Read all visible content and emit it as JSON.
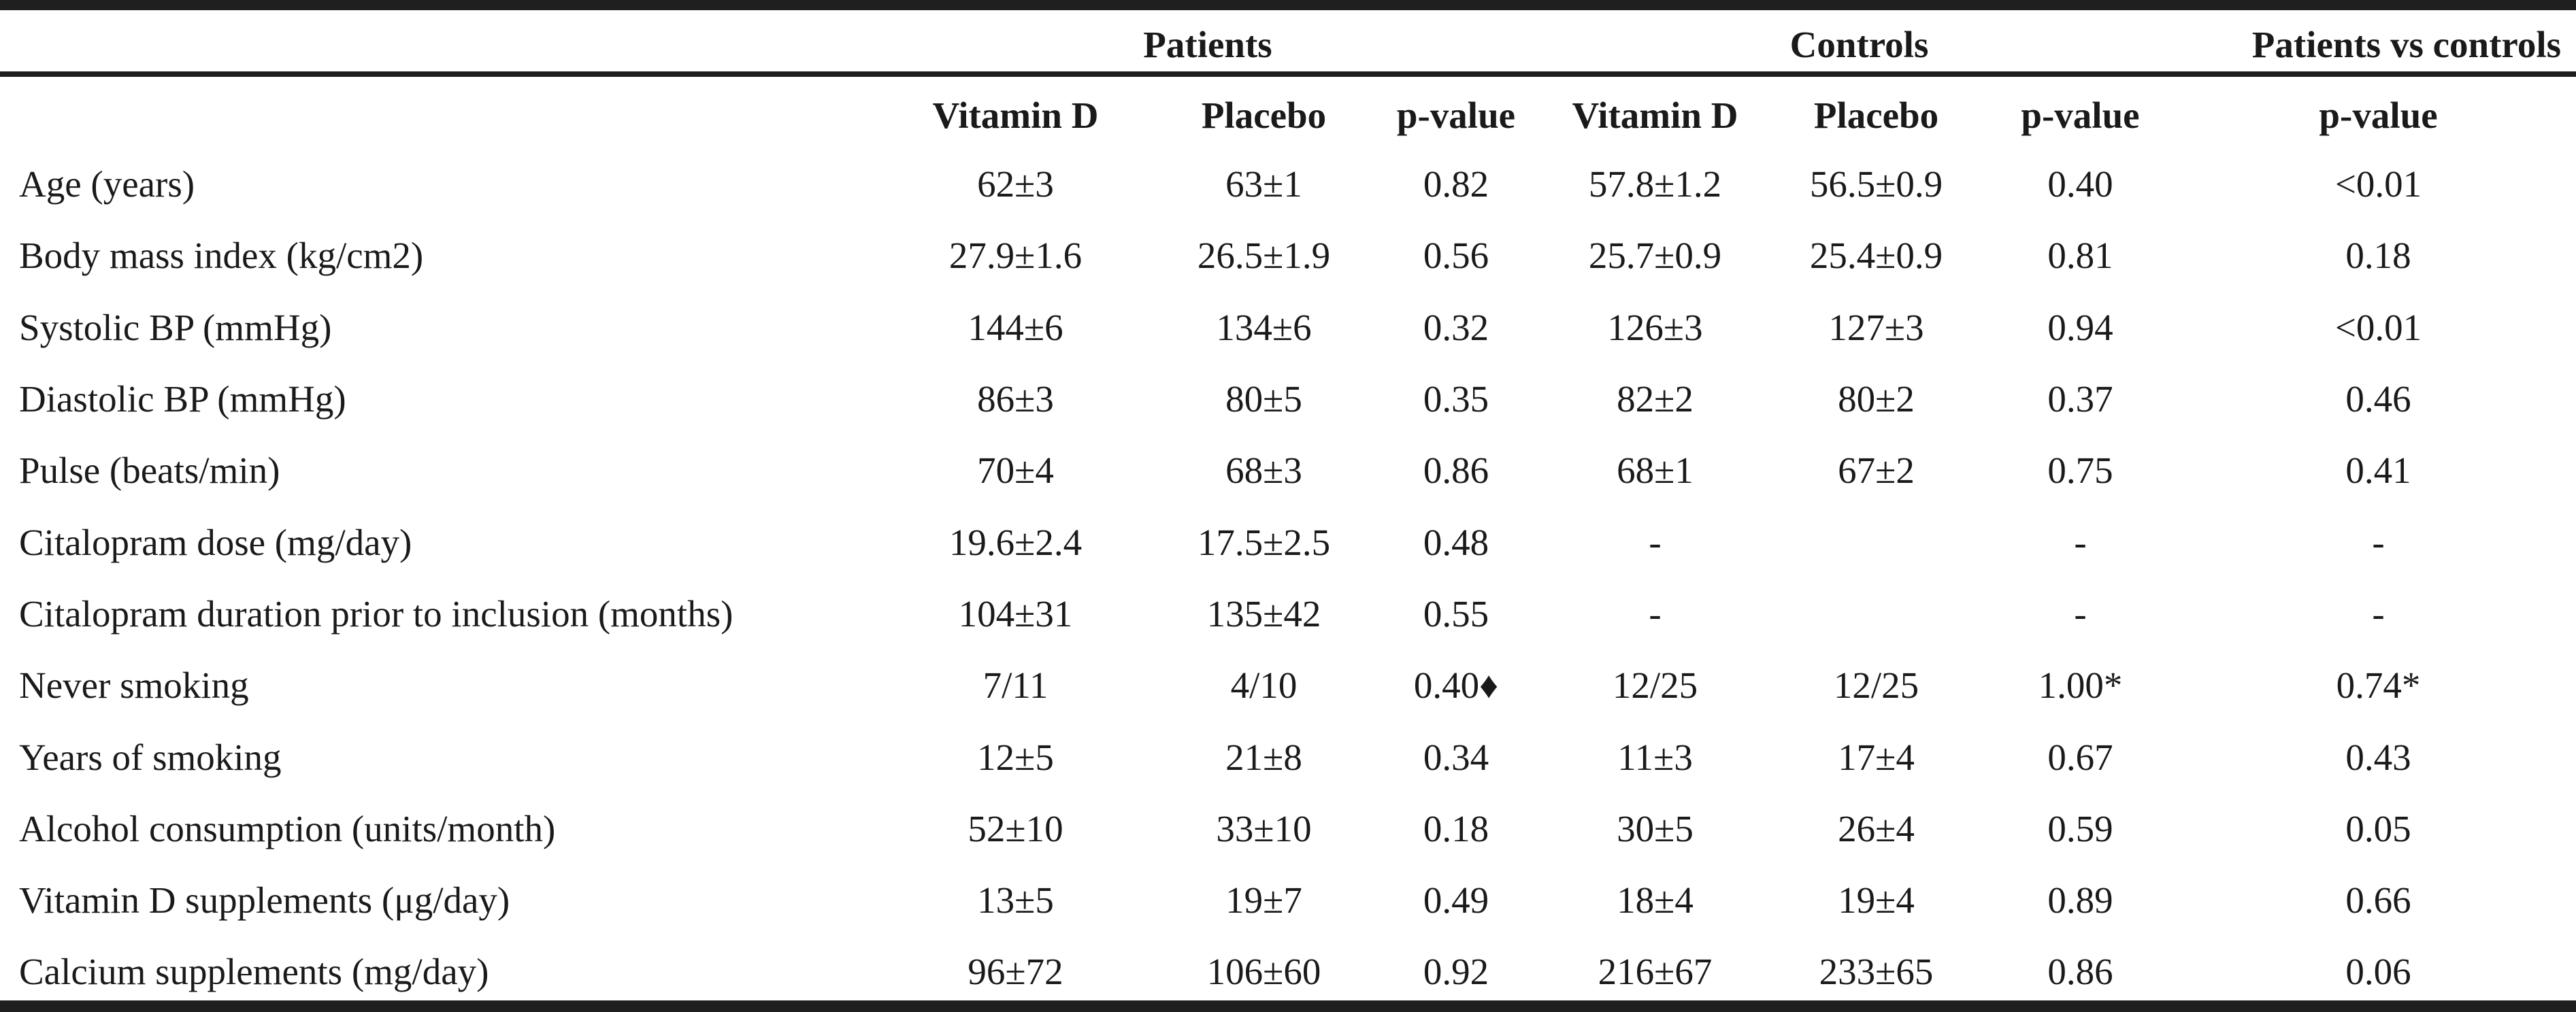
{
  "groups": {
    "patients": "Patients",
    "controls": "Controls",
    "comparison": "Patients vs controls"
  },
  "columns": {
    "patients_vitd": "Vitamin D",
    "patients_placebo": "Placebo",
    "patients_p": "p-value",
    "controls_vitd": "Vitamin D",
    "controls_placebo": "Placebo",
    "controls_p": "p-value",
    "comparison_p": "p-value"
  },
  "rows": [
    {
      "label": "Age (years)",
      "p_vitd": "62±3",
      "p_placebo": "63±1",
      "p_p": "0.82",
      "c_vitd": "57.8±1.2",
      "c_placebo": "56.5±0.9",
      "c_p": "0.40",
      "pvc_p": "<0.01"
    },
    {
      "label": "Body mass index (kg/cm2)",
      "p_vitd": "27.9±1.6",
      "p_placebo": "26.5±1.9",
      "p_p": "0.56",
      "c_vitd": "25.7±0.9",
      "c_placebo": "25.4±0.9",
      "c_p": "0.81",
      "pvc_p": "0.18"
    },
    {
      "label": "Systolic BP (mmHg)",
      "p_vitd": "144±6",
      "p_placebo": "134±6",
      "p_p": "0.32",
      "c_vitd": "126±3",
      "c_placebo": "127±3",
      "c_p": "0.94",
      "pvc_p": "<0.01"
    },
    {
      "label": "Diastolic BP (mmHg)",
      "p_vitd": "86±3",
      "p_placebo": "80±5",
      "p_p": "0.35",
      "c_vitd": "82±2",
      "c_placebo": "80±2",
      "c_p": "0.37",
      "pvc_p": "0.46"
    },
    {
      "label": "Pulse (beats/min)",
      "p_vitd": "70±4",
      "p_placebo": "68±3",
      "p_p": "0.86",
      "c_vitd": "68±1",
      "c_placebo": "67±2",
      "c_p": "0.75",
      "pvc_p": "0.41"
    },
    {
      "label": "Citalopram dose (mg/day)",
      "p_vitd": "19.6±2.4",
      "p_placebo": "17.5±2.5",
      "p_p": "0.48",
      "c_vitd": "-",
      "c_placebo": "",
      "c_p": "-",
      "pvc_p": "-"
    },
    {
      "label": "Citalopram duration prior to inclusion (months)",
      "p_vitd": "104±31",
      "p_placebo": "135±42",
      "p_p": "0.55",
      "c_vitd": "-",
      "c_placebo": "",
      "c_p": "-",
      "pvc_p": "-"
    },
    {
      "label": "Never smoking",
      "p_vitd": "7/11",
      "p_placebo": "4/10",
      "p_p": "0.40♦",
      "c_vitd": "12/25",
      "c_placebo": "12/25",
      "c_p": "1.00*",
      "pvc_p": "0.74*"
    },
    {
      "label": "Years of smoking",
      "p_vitd": "12±5",
      "p_placebo": "21±8",
      "p_p": "0.34",
      "c_vitd": "11±3",
      "c_placebo": "17±4",
      "c_p": "0.67",
      "pvc_p": "0.43"
    },
    {
      "label": "Alcohol consumption (units/month)",
      "p_vitd": "52±10",
      "p_placebo": "33±10",
      "p_p": "0.18",
      "c_vitd": "30±5",
      "c_placebo": "26±4",
      "c_p": "0.59",
      "pvc_p": "0.05"
    },
    {
      "label": "Vitamin D supplements (μg/day)",
      "p_vitd": "13±5",
      "p_placebo": "19±7",
      "p_p": "0.49",
      "c_vitd": "18±4",
      "c_placebo": "19±4",
      "c_p": "0.89",
      "pvc_p": "0.66"
    },
    {
      "label": "Calcium supplements (mg/day)",
      "p_vitd": "96±72",
      "p_placebo": "106±60",
      "p_p": "0.92",
      "c_vitd": "216±67",
      "c_placebo": "233±65",
      "c_p": "0.86",
      "pvc_p": "0.06"
    }
  ]
}
